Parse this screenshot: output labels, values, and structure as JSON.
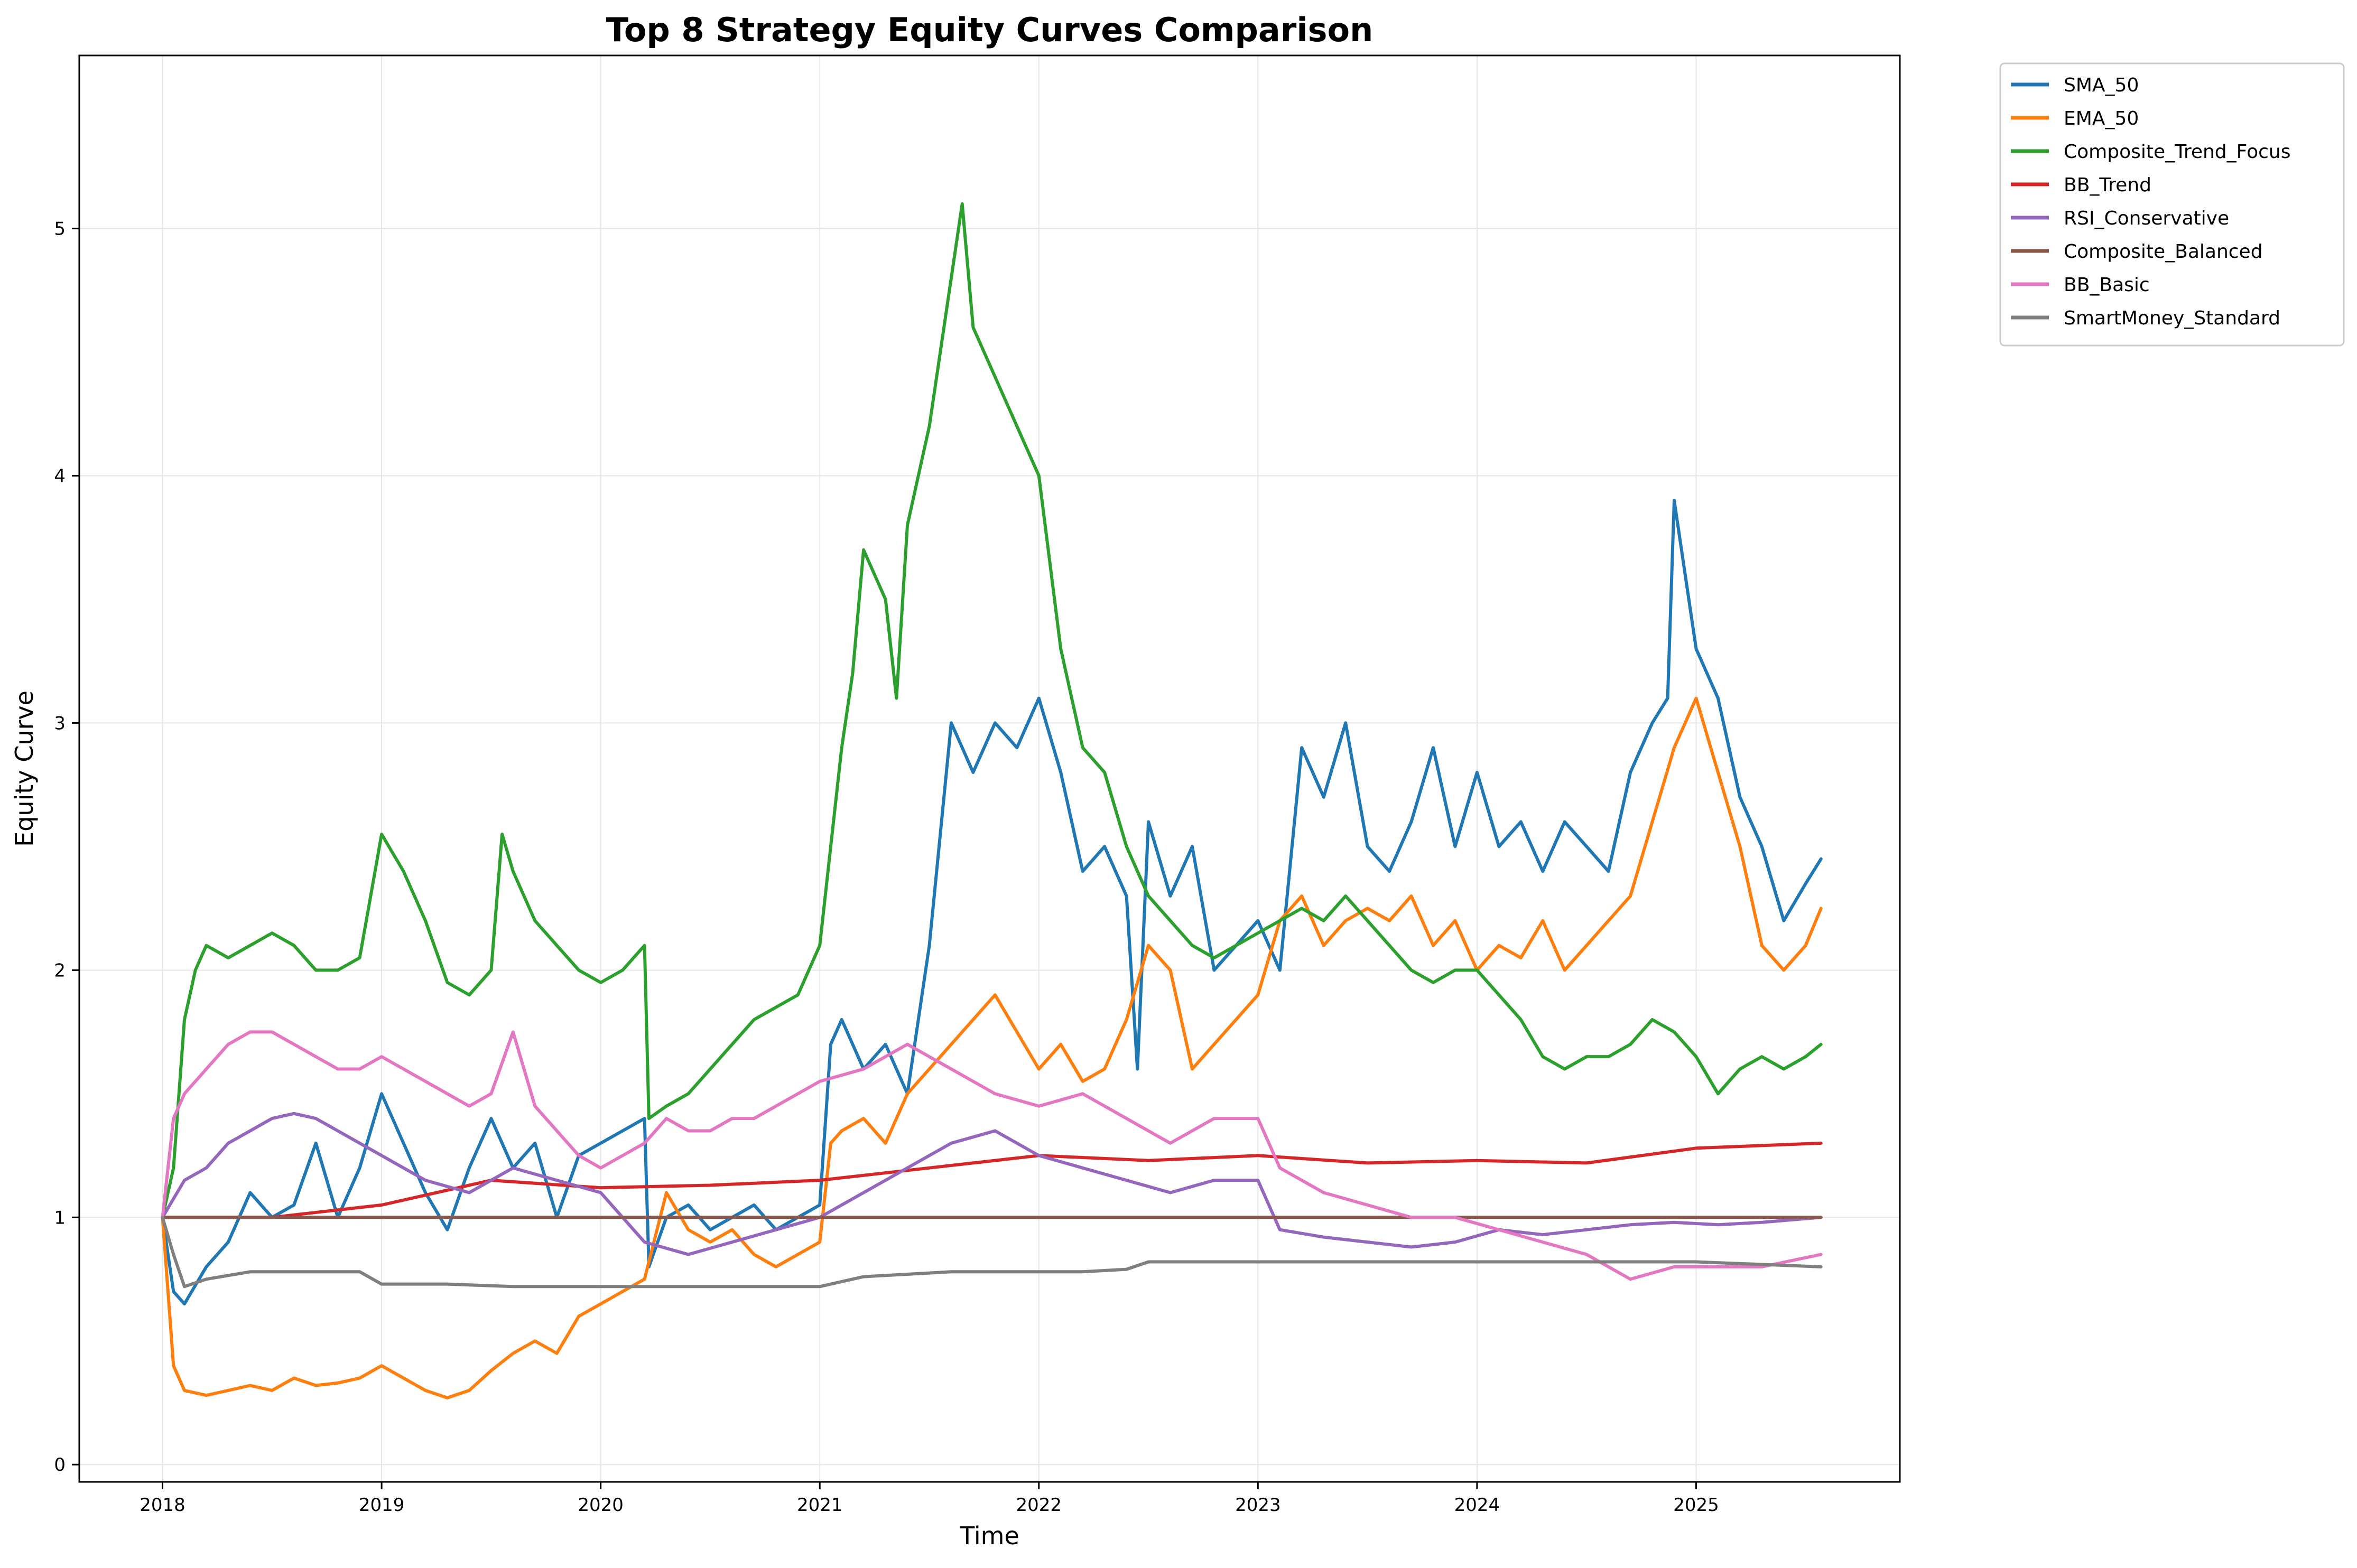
{
  "chart_data": {
    "type": "line",
    "title": "Top 8 Strategy Equity Curves Comparison",
    "xlabel": "Time",
    "ylabel": "Equity Curve",
    "x_ticks": [
      "2018",
      "2019",
      "2020",
      "2021",
      "2022",
      "2023",
      "2024",
      "2025"
    ],
    "y_ticks": [
      "0",
      "1",
      "2",
      "3",
      "4",
      "5"
    ],
    "xlim": [
      2017.62,
      2025.93
    ],
    "ylim": [
      -0.07,
      5.7
    ],
    "grid": true,
    "legend_position": "outside-top-right",
    "series": [
      {
        "name": "SMA_50",
        "color": "#1f77b4",
        "x": [
          2018.0,
          2018.05,
          2018.1,
          2018.2,
          2018.3,
          2018.4,
          2018.5,
          2018.6,
          2018.7,
          2018.8,
          2018.9,
          2019.0,
          2019.1,
          2019.2,
          2019.3,
          2019.4,
          2019.5,
          2019.6,
          2019.7,
          2019.8,
          2019.9,
          2020.0,
          2020.1,
          2020.2,
          2020.22,
          2020.3,
          2020.4,
          2020.5,
          2020.6,
          2020.7,
          2020.8,
          2020.9,
          2021.0,
          2021.05,
          2021.1,
          2021.2,
          2021.3,
          2021.4,
          2021.5,
          2021.6,
          2021.7,
          2021.8,
          2021.9,
          2022.0,
          2022.1,
          2022.2,
          2022.3,
          2022.4,
          2022.45,
          2022.5,
          2022.6,
          2022.7,
          2022.8,
          2022.9,
          2023.0,
          2023.1,
          2023.2,
          2023.3,
          2023.4,
          2023.5,
          2023.6,
          2023.7,
          2023.8,
          2023.9,
          2024.0,
          2024.1,
          2024.2,
          2024.3,
          2024.4,
          2024.5,
          2024.6,
          2024.7,
          2024.8,
          2024.87,
          2024.9,
          2025.0,
          2025.1,
          2025.2,
          2025.3,
          2025.4,
          2025.5,
          2025.57
        ],
        "values": [
          1.0,
          0.7,
          0.65,
          0.8,
          0.9,
          1.1,
          1.0,
          1.05,
          1.3,
          1.0,
          1.2,
          1.5,
          1.3,
          1.1,
          0.95,
          1.2,
          1.4,
          1.2,
          1.3,
          1.0,
          1.25,
          1.3,
          1.35,
          1.4,
          0.8,
          1.0,
          1.05,
          0.95,
          1.0,
          1.05,
          0.95,
          1.0,
          1.05,
          1.7,
          1.8,
          1.6,
          1.7,
          1.5,
          2.1,
          3.0,
          2.8,
          3.0,
          2.9,
          3.1,
          2.8,
          2.4,
          2.5,
          2.3,
          1.6,
          2.6,
          2.3,
          2.5,
          2.0,
          2.1,
          2.2,
          2.0,
          2.9,
          2.7,
          3.0,
          2.5,
          2.4,
          2.6,
          2.9,
          2.5,
          2.8,
          2.5,
          2.6,
          2.4,
          2.6,
          2.5,
          2.4,
          2.8,
          3.0,
          3.1,
          3.9,
          3.3,
          3.1,
          2.7,
          2.5,
          2.2,
          2.35,
          2.45
        ]
      },
      {
        "name": "EMA_50",
        "color": "#ff7f0e",
        "x": [
          2018.0,
          2018.05,
          2018.1,
          2018.2,
          2018.3,
          2018.4,
          2018.5,
          2018.6,
          2018.7,
          2018.8,
          2018.9,
          2019.0,
          2019.1,
          2019.2,
          2019.3,
          2019.4,
          2019.5,
          2019.6,
          2019.7,
          2019.8,
          2019.9,
          2020.0,
          2020.1,
          2020.2,
          2020.22,
          2020.3,
          2020.4,
          2020.5,
          2020.6,
          2020.7,
          2020.8,
          2020.9,
          2021.0,
          2021.05,
          2021.1,
          2021.2,
          2021.3,
          2021.4,
          2021.5,
          2021.6,
          2021.7,
          2021.8,
          2021.9,
          2022.0,
          2022.1,
          2022.2,
          2022.3,
          2022.4,
          2022.5,
          2022.6,
          2022.7,
          2022.8,
          2022.9,
          2023.0,
          2023.1,
          2023.2,
          2023.3,
          2023.4,
          2023.5,
          2023.6,
          2023.7,
          2023.8,
          2023.9,
          2024.0,
          2024.1,
          2024.2,
          2024.3,
          2024.4,
          2024.5,
          2024.6,
          2024.7,
          2024.8,
          2024.9,
          2025.0,
          2025.1,
          2025.2,
          2025.3,
          2025.4,
          2025.5,
          2025.57
        ],
        "values": [
          1.0,
          0.4,
          0.3,
          0.28,
          0.3,
          0.32,
          0.3,
          0.35,
          0.32,
          0.33,
          0.35,
          0.4,
          0.35,
          0.3,
          0.27,
          0.3,
          0.38,
          0.45,
          0.5,
          0.45,
          0.6,
          0.65,
          0.7,
          0.75,
          0.82,
          1.1,
          0.95,
          0.9,
          0.95,
          0.85,
          0.8,
          0.85,
          0.9,
          1.3,
          1.35,
          1.4,
          1.3,
          1.5,
          1.6,
          1.7,
          1.8,
          1.9,
          1.75,
          1.6,
          1.7,
          1.55,
          1.6,
          1.8,
          2.1,
          2.0,
          1.6,
          1.7,
          1.8,
          1.9,
          2.2,
          2.3,
          2.1,
          2.2,
          2.25,
          2.2,
          2.3,
          2.1,
          2.2,
          2.0,
          2.1,
          2.05,
          2.2,
          2.0,
          2.1,
          2.2,
          2.3,
          2.6,
          2.9,
          3.1,
          2.8,
          2.5,
          2.1,
          2.0,
          2.1,
          2.25
        ]
      },
      {
        "name": "Composite_Trend_Focus",
        "color": "#2ca02c",
        "x": [
          2018.0,
          2018.05,
          2018.1,
          2018.15,
          2018.2,
          2018.3,
          2018.4,
          2018.5,
          2018.6,
          2018.7,
          2018.8,
          2018.9,
          2018.95,
          2019.0,
          2019.1,
          2019.2,
          2019.3,
          2019.4,
          2019.5,
          2019.55,
          2019.6,
          2019.7,
          2019.8,
          2019.9,
          2020.0,
          2020.1,
          2020.2,
          2020.22,
          2020.3,
          2020.4,
          2020.5,
          2020.6,
          2020.7,
          2020.8,
          2020.9,
          2021.0,
          2021.05,
          2021.1,
          2021.15,
          2021.2,
          2021.3,
          2021.35,
          2021.4,
          2021.5,
          2021.6,
          2021.65,
          2021.7,
          2021.8,
          2021.9,
          2022.0,
          2022.1,
          2022.2,
          2022.3,
          2022.4,
          2022.5,
          2022.6,
          2022.7,
          2022.8,
          2022.9,
          2023.0,
          2023.1,
          2023.2,
          2023.3,
          2023.4,
          2023.5,
          2023.6,
          2023.7,
          2023.8,
          2023.9,
          2024.0,
          2024.1,
          2024.2,
          2024.3,
          2024.4,
          2024.5,
          2024.6,
          2024.7,
          2024.8,
          2024.9,
          2025.0,
          2025.1,
          2025.2,
          2025.3,
          2025.4,
          2025.5,
          2025.57
        ],
        "values": [
          1.0,
          1.2,
          1.8,
          2.0,
          2.1,
          2.05,
          2.1,
          2.15,
          2.1,
          2.0,
          2.0,
          2.05,
          2.3,
          2.55,
          2.4,
          2.2,
          1.95,
          1.9,
          2.0,
          2.55,
          2.4,
          2.2,
          2.1,
          2.0,
          1.95,
          2.0,
          2.1,
          1.4,
          1.45,
          1.5,
          1.6,
          1.7,
          1.8,
          1.85,
          1.9,
          2.1,
          2.5,
          2.9,
          3.2,
          3.7,
          3.5,
          3.1,
          3.8,
          4.2,
          4.8,
          5.1,
          4.6,
          4.4,
          4.2,
          4.0,
          3.3,
          2.9,
          2.8,
          2.5,
          2.3,
          2.2,
          2.1,
          2.05,
          2.1,
          2.15,
          2.2,
          2.25,
          2.2,
          2.3,
          2.2,
          2.1,
          2.0,
          1.95,
          2.0,
          2.0,
          1.9,
          1.8,
          1.65,
          1.6,
          1.65,
          1.65,
          1.7,
          1.8,
          1.75,
          1.65,
          1.5,
          1.6,
          1.65,
          1.6,
          1.65,
          1.7
        ]
      },
      {
        "name": "BB_Trend",
        "color": "#d62728",
        "x": [
          2018.0,
          2018.5,
          2019.0,
          2019.5,
          2020.0,
          2020.5,
          2021.0,
          2021.5,
          2022.0,
          2022.5,
          2023.0,
          2023.5,
          2024.0,
          2024.5,
          2025.0,
          2025.57
        ],
        "values": [
          1.0,
          1.0,
          1.05,
          1.15,
          1.12,
          1.13,
          1.15,
          1.2,
          1.25,
          1.23,
          1.25,
          1.22,
          1.23,
          1.22,
          1.28,
          1.3
        ]
      },
      {
        "name": "RSI_Conservative",
        "color": "#9467bd",
        "x": [
          2018.0,
          2018.1,
          2018.2,
          2018.3,
          2018.4,
          2018.5,
          2018.6,
          2018.7,
          2018.8,
          2018.9,
          2019.0,
          2019.2,
          2019.4,
          2019.6,
          2019.8,
          2020.0,
          2020.2,
          2020.4,
          2020.6,
          2020.8,
          2021.0,
          2021.2,
          2021.4,
          2021.6,
          2021.8,
          2022.0,
          2022.2,
          2022.4,
          2022.6,
          2022.8,
          2023.0,
          2023.1,
          2023.3,
          2023.5,
          2023.7,
          2023.9,
          2024.1,
          2024.3,
          2024.5,
          2024.7,
          2024.9,
          2025.1,
          2025.3,
          2025.57
        ],
        "values": [
          1.0,
          1.15,
          1.2,
          1.3,
          1.35,
          1.4,
          1.42,
          1.4,
          1.35,
          1.3,
          1.25,
          1.15,
          1.1,
          1.2,
          1.15,
          1.1,
          0.9,
          0.85,
          0.9,
          0.95,
          1.0,
          1.1,
          1.2,
          1.3,
          1.35,
          1.25,
          1.2,
          1.15,
          1.1,
          1.15,
          1.15,
          0.95,
          0.92,
          0.9,
          0.88,
          0.9,
          0.95,
          0.93,
          0.95,
          0.97,
          0.98,
          0.97,
          0.98,
          1.0
        ]
      },
      {
        "name": "Composite_Balanced",
        "color": "#8c564b",
        "x": [
          2018.0,
          2025.57
        ],
        "values": [
          1.0,
          1.0
        ]
      },
      {
        "name": "BB_Basic",
        "color": "#e377c2",
        "x": [
          2018.0,
          2018.05,
          2018.1,
          2018.2,
          2018.3,
          2018.4,
          2018.5,
          2018.6,
          2018.7,
          2018.8,
          2018.9,
          2019.0,
          2019.2,
          2019.4,
          2019.5,
          2019.6,
          2019.7,
          2019.8,
          2019.9,
          2020.0,
          2020.1,
          2020.2,
          2020.3,
          2020.4,
          2020.5,
          2020.6,
          2020.7,
          2020.8,
          2020.9,
          2021.0,
          2021.2,
          2021.4,
          2021.6,
          2021.8,
          2022.0,
          2022.2,
          2022.4,
          2022.6,
          2022.8,
          2023.0,
          2023.1,
          2023.3,
          2023.5,
          2023.7,
          2023.9,
          2024.1,
          2024.3,
          2024.5,
          2024.7,
          2024.9,
          2025.1,
          2025.3,
          2025.57
        ],
        "values": [
          1.0,
          1.4,
          1.5,
          1.6,
          1.7,
          1.75,
          1.75,
          1.7,
          1.65,
          1.6,
          1.6,
          1.65,
          1.55,
          1.45,
          1.5,
          1.75,
          1.45,
          1.35,
          1.25,
          1.2,
          1.25,
          1.3,
          1.4,
          1.35,
          1.35,
          1.4,
          1.4,
          1.45,
          1.5,
          1.55,
          1.6,
          1.7,
          1.6,
          1.5,
          1.45,
          1.5,
          1.4,
          1.3,
          1.4,
          1.4,
          1.2,
          1.1,
          1.05,
          1.0,
          1.0,
          0.95,
          0.9,
          0.85,
          0.75,
          0.8,
          0.8,
          0.8,
          0.85
        ]
      },
      {
        "name": "SmartMoney_Standard",
        "color": "#7f7f7f",
        "x": [
          2018.0,
          2018.05,
          2018.1,
          2018.2,
          2018.4,
          2018.9,
          2019.0,
          2019.3,
          2019.6,
          2019.9,
          2020.2,
          2020.5,
          2020.9,
          2021.0,
          2021.2,
          2021.6,
          2021.9,
          2022.2,
          2022.4,
          2022.5,
          2022.8,
          2023.0,
          2023.5,
          2024.0,
          2024.5,
          2025.0,
          2025.57
        ],
        "values": [
          1.0,
          0.85,
          0.72,
          0.75,
          0.78,
          0.78,
          0.73,
          0.73,
          0.72,
          0.72,
          0.72,
          0.72,
          0.72,
          0.72,
          0.76,
          0.78,
          0.78,
          0.78,
          0.79,
          0.82,
          0.82,
          0.82,
          0.82,
          0.82,
          0.82,
          0.82,
          0.8
        ]
      }
    ]
  }
}
